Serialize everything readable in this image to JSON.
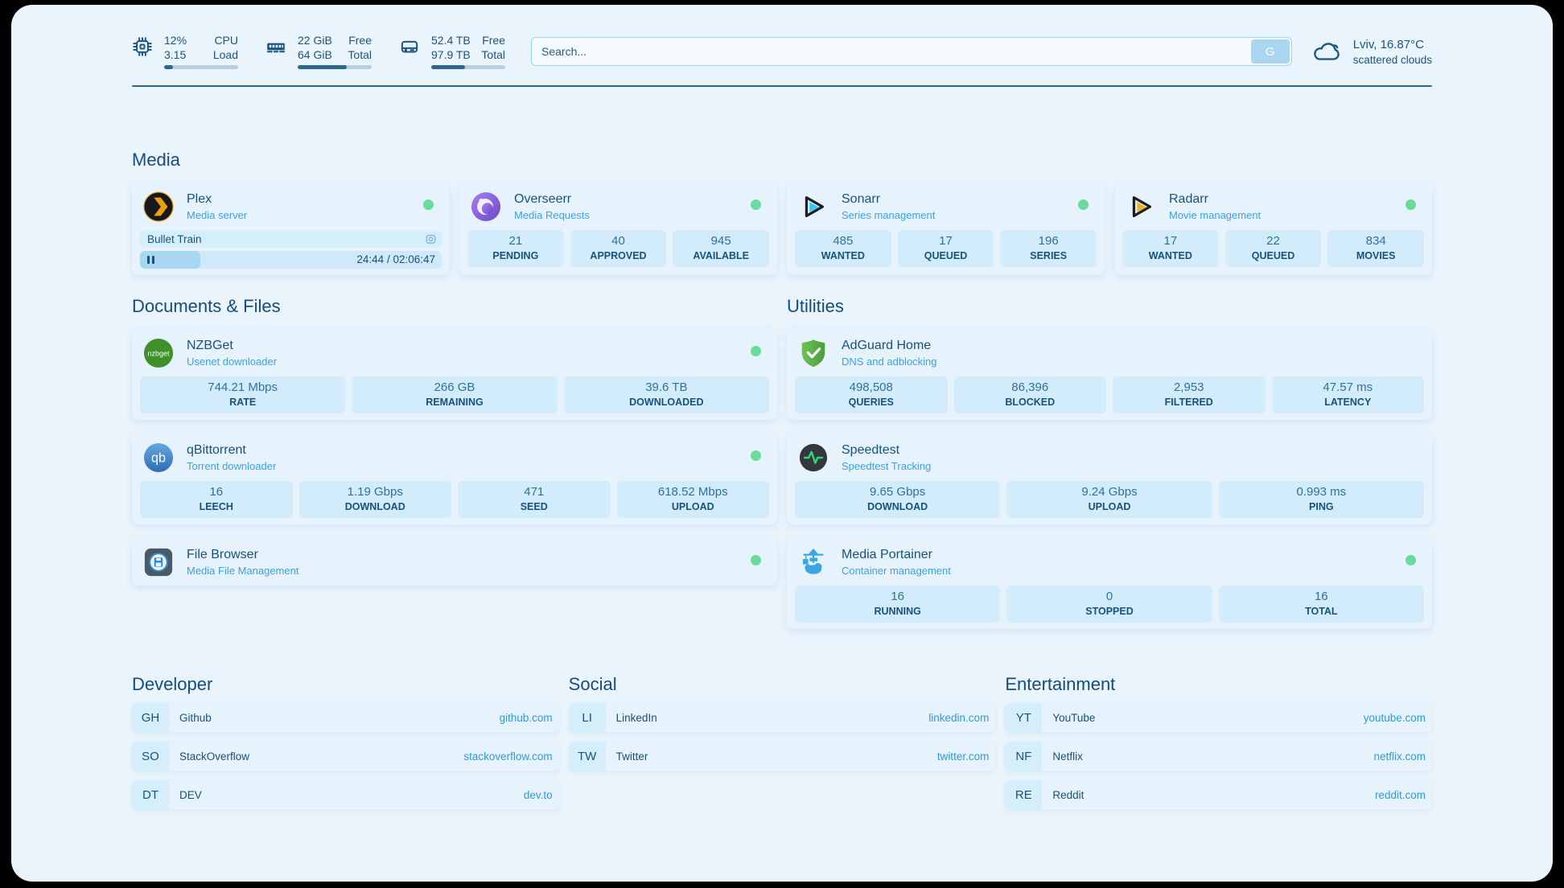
{
  "header": {
    "widgets": [
      {
        "name": "cpu",
        "line1_value": "12%",
        "line1_label": "CPU",
        "line2_value": "3.15",
        "line2_label": "Load",
        "progress_pct": 12
      },
      {
        "name": "memory",
        "line1_value": "22 GiB",
        "line1_label": "Free",
        "line2_value": "64 GiB",
        "line2_label": "Total",
        "progress_pct": 66
      },
      {
        "name": "disk",
        "line1_value": "52.4 TB",
        "line1_label": "Free",
        "line2_value": "97.9 TB",
        "line2_label": "Total",
        "progress_pct": 46
      }
    ],
    "search": {
      "placeholder": "Search...",
      "button_label": "G"
    },
    "weather": {
      "location": "Lviv, 16.87°C",
      "condition": "scattered clouds"
    }
  },
  "sections": {
    "media": {
      "title": "Media",
      "plex": {
        "title": "Plex",
        "subtitle": "Media server",
        "now_playing": "Bullet Train",
        "progress_pct": 20,
        "time": "24:44 / 02:06:47"
      },
      "overseerr": {
        "title": "Overseerr",
        "subtitle": "Media Requests",
        "stats": [
          {
            "value": "21",
            "label": "PENDING"
          },
          {
            "value": "40",
            "label": "APPROVED"
          },
          {
            "value": "945",
            "label": "AVAILABLE"
          }
        ]
      },
      "sonarr": {
        "title": "Sonarr",
        "subtitle": "Series management",
        "stats": [
          {
            "value": "485",
            "label": "WANTED"
          },
          {
            "value": "17",
            "label": "QUEUED"
          },
          {
            "value": "196",
            "label": "SERIES"
          }
        ]
      },
      "radarr": {
        "title": "Radarr",
        "subtitle": "Movie management",
        "stats": [
          {
            "value": "17",
            "label": "WANTED"
          },
          {
            "value": "22",
            "label": "QUEUED"
          },
          {
            "value": "834",
            "label": "MOVIES"
          }
        ]
      }
    },
    "documents": {
      "title": "Documents & Files",
      "nzbget": {
        "title": "NZBGet",
        "subtitle": "Usenet downloader",
        "stats": [
          {
            "value": "744.21 Mbps",
            "label": "RATE"
          },
          {
            "value": "266 GB",
            "label": "REMAINING"
          },
          {
            "value": "39.6 TB",
            "label": "DOWNLOADED"
          }
        ]
      },
      "qbittorrent": {
        "title": "qBittorrent",
        "subtitle": "Torrent downloader",
        "stats": [
          {
            "value": "16",
            "label": "LEECH"
          },
          {
            "value": "1.19 Gbps",
            "label": "DOWNLOAD"
          },
          {
            "value": "471",
            "label": "SEED"
          },
          {
            "value": "618.52 Mbps",
            "label": "UPLOAD"
          }
        ]
      },
      "filebrowser": {
        "title": "File Browser",
        "subtitle": "Media File Management"
      }
    },
    "utilities": {
      "title": "Utilities",
      "adguard": {
        "title": "AdGuard Home",
        "subtitle": "DNS and adblocking",
        "stats": [
          {
            "value": "498,508",
            "label": "QUERIES"
          },
          {
            "value": "86,396",
            "label": "BLOCKED"
          },
          {
            "value": "2,953",
            "label": "FILTERED"
          },
          {
            "value": "47.57 ms",
            "label": "LATENCY"
          }
        ]
      },
      "speedtest": {
        "title": "Speedtest",
        "subtitle": "Speedtest Tracking",
        "stats": [
          {
            "value": "9.65 Gbps",
            "label": "DOWNLOAD"
          },
          {
            "value": "9.24 Gbps",
            "label": "UPLOAD"
          },
          {
            "value": "0.993 ms",
            "label": "PING"
          }
        ]
      },
      "portainer": {
        "title": "Media Portainer",
        "subtitle": "Container management",
        "stats": [
          {
            "value": "16",
            "label": "RUNNING"
          },
          {
            "value": "0",
            "label": "STOPPED"
          },
          {
            "value": "16",
            "label": "TOTAL"
          }
        ]
      }
    },
    "bookmarks": {
      "developer": {
        "title": "Developer",
        "items": [
          {
            "abbr": "GH",
            "name": "Github",
            "url": "github.com"
          },
          {
            "abbr": "SO",
            "name": "StackOverflow",
            "url": "stackoverflow.com"
          },
          {
            "abbr": "DT",
            "name": "DEV",
            "url": "dev.to"
          }
        ]
      },
      "social": {
        "title": "Social",
        "items": [
          {
            "abbr": "LI",
            "name": "LinkedIn",
            "url": "linkedin.com"
          },
          {
            "abbr": "TW",
            "name": "Twitter",
            "url": "twitter.com"
          }
        ]
      },
      "entertainment": {
        "title": "Entertainment",
        "items": [
          {
            "abbr": "YT",
            "name": "YouTube",
            "url": "youtube.com"
          },
          {
            "abbr": "NF",
            "name": "Netflix",
            "url": "netflix.com"
          },
          {
            "abbr": "RE",
            "name": "Reddit",
            "url": "reddit.com"
          }
        ]
      }
    }
  }
}
